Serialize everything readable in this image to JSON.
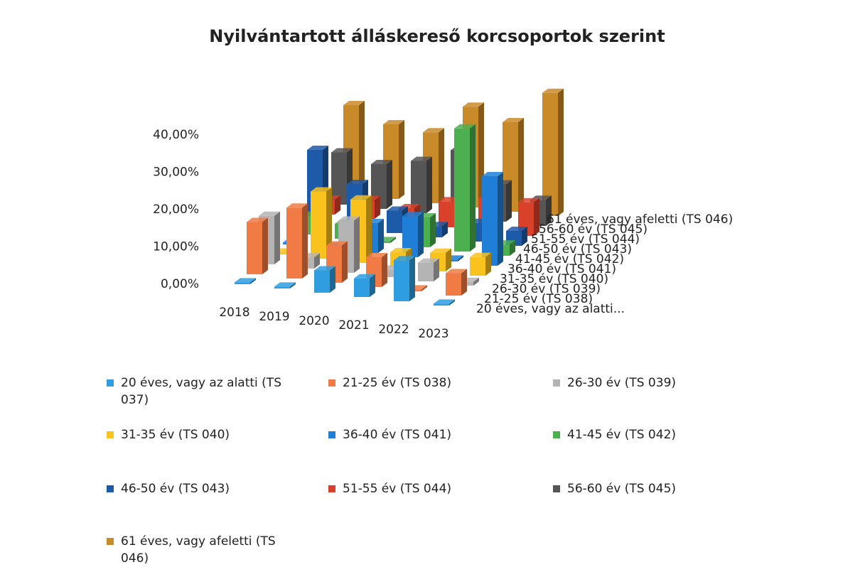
{
  "chart_data": {
    "type": "bar3d",
    "title": "Nyilvántartott álláskereső korcsoportok szerint",
    "categories": [
      "2018",
      "2019",
      "2020",
      "2021",
      "2022",
      "2023"
    ],
    "ylim": [
      0,
      40
    ],
    "yticks": [
      {
        "value": 0,
        "label": "0,00%"
      },
      {
        "value": 10,
        "label": "10,00%"
      },
      {
        "value": 20,
        "label": "20,00%"
      },
      {
        "value": 30,
        "label": "30,00%"
      },
      {
        "value": 40,
        "label": "40,00%"
      }
    ],
    "series_axis_labels": [
      "20 éves, vagy az alatti...",
      "21-25 év (TS 038)",
      "26-30 év (TS 039)",
      "31-35 év (TS 040)",
      "36-40 év (TS 041)",
      "41-45 év (TS 042)",
      "46-50 év (TS 043)",
      "51-55 év (TS 044)",
      "56-60 év (TS 045)",
      "61 éves, vagy afeletti (TS 046)"
    ],
    "series": [
      {
        "name": "20 éves, vagy az alatti (TS 037)",
        "color": "#2e9ee0",
        "values": [
          0.5,
          0.5,
          6,
          5,
          11,
          0.5
        ]
      },
      {
        "name": "21-25 év (TS 038)",
        "color": "#f07b45",
        "values": [
          14,
          19,
          10,
          8,
          0.5,
          6
        ]
      },
      {
        "name": "26-30 év (TS 039)",
        "color": "#b4b4b4",
        "values": [
          13,
          3,
          14,
          2,
          5,
          1
        ]
      },
      {
        "name": "31-35 év (TS 040)",
        "color": "#f9c21c",
        "values": [
          0.5,
          18,
          17,
          4,
          5,
          5
        ]
      },
      {
        "name": "36-40 év (TS 041)",
        "color": "#1f7fd6",
        "values": [
          0.5,
          0.5,
          8,
          11,
          0.5,
          24
        ]
      },
      {
        "name": "41-45 év (TS 042)",
        "color": "#4caf50",
        "values": [
          5,
          4,
          0.5,
          8,
          33,
          3
        ]
      },
      {
        "name": "46-50 év (TS 043)",
        "color": "#1d5aa8",
        "values": [
          20,
          12,
          6,
          3,
          5,
          4
        ]
      },
      {
        "name": "51-55 év (TS 044)",
        "color": "#d9412a",
        "values": [
          4,
          5,
          4,
          7,
          9,
          9
        ]
      },
      {
        "name": "56-60 év (TS 045)",
        "color": "#555555",
        "values": [
          14,
          12,
          14,
          18,
          10,
          7
        ]
      },
      {
        "name": "61 éves, vagy afeletti (TS 046)",
        "color": "#c98a2a",
        "values": [
          24,
          20,
          19,
          27,
          24,
          33
        ]
      }
    ]
  }
}
